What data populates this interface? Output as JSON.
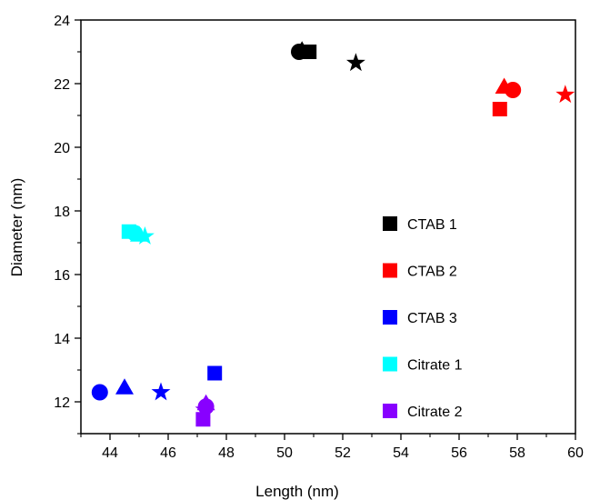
{
  "chart_data": {
    "type": "scatter",
    "xlabel": "Length (nm)",
    "ylabel": "Diameter (nm)",
    "xlim": [
      43,
      60
    ],
    "ylim": [
      11,
      24
    ],
    "xticks": [
      44,
      46,
      48,
      50,
      52,
      54,
      56,
      58,
      60
    ],
    "yticks": [
      12,
      14,
      16,
      18,
      20,
      22,
      24
    ],
    "legend_placement": "right",
    "grid": false,
    "series": [
      {
        "name": "CTAB 1",
        "color": "#000000",
        "points": [
          {
            "marker": "circle",
            "x": 50.5,
            "y": 23.0
          },
          {
            "marker": "triangle",
            "x": 50.6,
            "y": 23.05
          },
          {
            "marker": "square",
            "x": 50.85,
            "y": 23.0
          },
          {
            "marker": "star",
            "x": 52.45,
            "y": 22.65
          }
        ]
      },
      {
        "name": "CTAB 2",
        "color": "#ff0000",
        "points": [
          {
            "marker": "square",
            "x": 57.4,
            "y": 21.2
          },
          {
            "marker": "triangle",
            "x": 57.55,
            "y": 21.9
          },
          {
            "marker": "circle",
            "x": 57.85,
            "y": 21.8
          },
          {
            "marker": "star",
            "x": 59.65,
            "y": 21.65
          }
        ]
      },
      {
        "name": "CTAB 3",
        "color": "#0000ff",
        "points": [
          {
            "marker": "circle",
            "x": 43.65,
            "y": 12.3
          },
          {
            "marker": "triangle",
            "x": 44.5,
            "y": 12.45
          },
          {
            "marker": "star",
            "x": 45.75,
            "y": 12.3
          },
          {
            "marker": "square",
            "x": 47.6,
            "y": 12.9
          }
        ]
      },
      {
        "name": "Citrate 1",
        "color": "#00ffff",
        "points": [
          {
            "marker": "square",
            "x": 44.65,
            "y": 17.35
          },
          {
            "marker": "circle",
            "x": 44.85,
            "y": 17.3
          },
          {
            "marker": "triangle",
            "x": 45.0,
            "y": 17.25
          },
          {
            "marker": "star",
            "x": 45.2,
            "y": 17.2
          }
        ]
      },
      {
        "name": "Citrate 2",
        "color": "#8800ff",
        "points": [
          {
            "marker": "square",
            "x": 47.2,
            "y": 11.45
          },
          {
            "marker": "star",
            "x": 47.25,
            "y": 11.75
          },
          {
            "marker": "triangle",
            "x": 47.3,
            "y": 11.95
          },
          {
            "marker": "circle",
            "x": 47.3,
            "y": 11.85
          }
        ]
      }
    ]
  }
}
